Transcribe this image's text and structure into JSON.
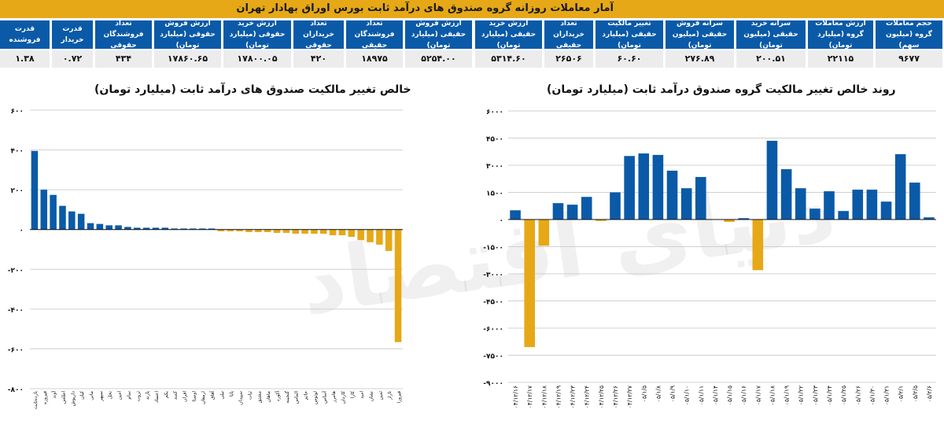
{
  "header": {
    "title": "آمار معاملات روزانه گروه صندوق های درآمد ثابت بورس اوراق بهادار تهران"
  },
  "stats": [
    {
      "label": "حجم معاملات گروه (میلیون سهم)",
      "value": "۹۶۷۷"
    },
    {
      "label": "ارزش معاملات گروه (میلیارد تومان)",
      "value": "۲۲۱۱۵"
    },
    {
      "label": "سرانه خرید حقیقی (میلیون تومان)",
      "value": "۲۰۰.۵۱"
    },
    {
      "label": "سرانه فروش حقیقی (میلیون تومان)",
      "value": "۲۷۶.۸۹"
    },
    {
      "label": "تغییر مالکیت حقیقی (میلیارد تومان)",
      "value": "۶۰.۶۰"
    },
    {
      "label": "تعداد خریداران حقیقی",
      "value": "۲۶۵۰۶"
    },
    {
      "label": "ارزش خرید حقیقی (میلیارد تومان)",
      "value": "۵۳۱۴.۶۰"
    },
    {
      "label": "ارزش فروش حقیقی (میلیارد تومان)",
      "value": "۵۲۵۴.۰۰"
    },
    {
      "label": "تعداد فروشندگان حقیقی",
      "value": "۱۸۹۷۵"
    },
    {
      "label": "تعداد خریداران حقوقی",
      "value": "۴۲۰"
    },
    {
      "label": "ارزش خرید حقوقی (میلیارد تومان)",
      "value": "۱۷۸۰۰.۰۵"
    },
    {
      "label": "ارزش فروش حقوقی (میلیارد تومان)",
      "value": "۱۷۸۶۰.۶۵"
    },
    {
      "label": "تعداد فروشندگان حقوقی",
      "value": "۴۳۴"
    },
    {
      "label": "قدرت خریدار",
      "value": "۰.۷۲"
    },
    {
      "label": "قدرت فروشنده",
      "value": "۱.۳۸"
    }
  ],
  "watermark": "دنیای اقتصاد",
  "colors": {
    "positive": "#0A5AA8",
    "negative": "#E6A817",
    "header": "#E6A817",
    "table_header": "#0A5AA8"
  },
  "chart_data": [
    {
      "type": "bar",
      "title": "خالص تغییر مالکیت صندوق های درآمد ثابت (میلیارد تومان)",
      "ylim": [
        -800,
        600
      ],
      "yticks": [
        600,
        400,
        200,
        0,
        -200,
        -400,
        -600,
        -800
      ],
      "ytick_labels": [
        "۶۰۰",
        "۴۰۰",
        "۲۰۰",
        "۰",
        "-۲۰۰",
        "-۴۰۰",
        "-۶۰۰",
        "-۸۰۰"
      ],
      "grid": true,
      "categories": [
        "بازده‌ثابت",
        "فیروزه",
        "آوند",
        "اطلس",
        "داریوش",
        "کیان",
        "مانی",
        "سپهر",
        "نخل",
        "امین",
        "سام",
        "ثروت",
        "پارند",
        "اعتماد",
        "یکم",
        "کمند",
        "افران",
        "اوصتا",
        "ارمغان",
        "آفاق",
        "نیلی",
        "پایا",
        "سپیدان",
        "ثبات",
        "مشتق",
        "ماهان",
        "آکورد",
        "گنجینه",
        "الماس",
        "خاتم",
        "لوتوس",
        "آساس",
        "هامرز",
        "کاردان",
        "کارا",
        "امید",
        "نشان",
        "ثمین",
        "تاراز",
        "فیروزا"
      ],
      "values": [
        395,
        200,
        174,
        119,
        91,
        79,
        32,
        28,
        21,
        21,
        13,
        9,
        9,
        9,
        9,
        5,
        5,
        5,
        5,
        5,
        -9,
        -9,
        -9,
        -13,
        -13,
        -13,
        -17,
        -17,
        -21,
        -21,
        -21,
        -21,
        -29,
        -29,
        -37,
        -53,
        -64,
        -76,
        -108,
        -566
      ]
    },
    {
      "type": "bar",
      "title": "روند خالص تغییر مالکیت گروه صندوق درآمد ثابت (میلیارد تومان)",
      "ylim": [
        -9000,
        6000
      ],
      "yticks": [
        6000,
        4500,
        3000,
        1500,
        0,
        -1500,
        -3000,
        -4500,
        -6000,
        -7500,
        -9000
      ],
      "ytick_labels": [
        "۶۰۰۰",
        "۴۵۰۰",
        "۳۰۰۰",
        "۱۵۰۰",
        "۰",
        "-۱۵۰۰",
        "-۳۰۰۰",
        "-۴۵۰۰",
        "-۶۰۰۰",
        "-۷۵۰۰",
        "-۹۰۰۰"
      ],
      "grid": true,
      "categories": [
        "۰۴/۱۲/۱۶",
        "۰۴/۱۲/۱۷",
        "۰۴/۱۲/۱۸",
        "۰۴/۱۲/۱۹",
        "۰۴/۱۲/۲۳",
        "۰۴/۱۲/۲۴",
        "۰۴/۱۲/۲۵",
        "۰۴/۱۲/۲۶",
        "۰۴/۱۲/۲۷",
        "۰۵/۱/۵",
        "۰۵/۱/۸",
        "۰۵/۱/۹",
        "۰۵/۱/۱۰",
        "۰۵/۱/۱۱",
        "۰۵/۱/۱۴",
        "۰۵/۱/۱۵",
        "۰۵/۱/۱۶",
        "۰۵/۱/۱۷",
        "۰۵/۱/۱۸",
        "۰۵/۱/۱۹",
        "۰۵/۱/۲۲",
        "۰۵/۱/۲۳",
        "۰۵/۱/۲۴",
        "۰۵/۱/۲۵",
        "۰۵/۱/۲۶",
        "۰۵/۱/۳۰",
        "۰۵/۱/۳۱",
        "۰۵/۲/۱",
        "۰۵/۲/۵",
        "۰۵/۲/۶"
      ],
      "values": [
        510,
        -7050,
        -1450,
        905,
        820,
        1250,
        -80,
        1500,
        3510,
        3650,
        3570,
        2700,
        1730,
        2350,
        0,
        -130,
        75,
        -2800,
        4350,
        2780,
        1730,
        600,
        1560,
        470,
        1650,
        1650,
        990,
        3610,
        2040,
        120
      ]
    }
  ]
}
